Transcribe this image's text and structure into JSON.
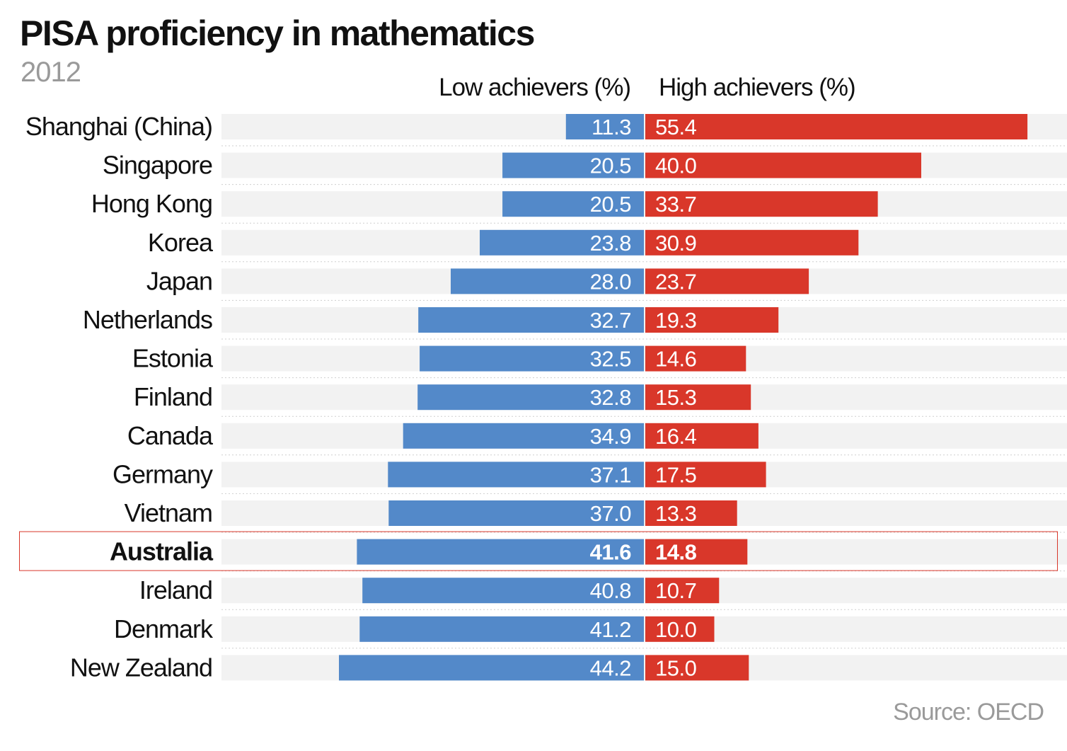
{
  "chart_data": {
    "type": "bar",
    "title": "PISA proficiency in mathematics",
    "subtitle": "2012",
    "source": "Source: OECD",
    "categories": [
      "Shanghai (China)",
      "Singapore",
      "Hong Kong",
      "Korea",
      "Japan",
      "Netherlands",
      "Estonia",
      "Finland",
      "Canada",
      "Germany",
      "Vietnam",
      "Australia",
      "Ireland",
      "Denmark",
      "New Zealand"
    ],
    "series": [
      {
        "name": "Low achievers (%)",
        "color": "#5389c9",
        "values": [
          11.3,
          20.5,
          20.5,
          23.8,
          28.0,
          32.7,
          32.5,
          32.8,
          34.9,
          37.1,
          37.0,
          41.6,
          40.8,
          41.2,
          44.2
        ]
      },
      {
        "name": "High achievers (%)",
        "color": "#d9372a",
        "values": [
          55.4,
          40.0,
          33.7,
          30.9,
          23.7,
          19.3,
          14.6,
          15.3,
          16.4,
          17.5,
          13.3,
          14.8,
          10.7,
          10.0,
          15.0
        ]
      }
    ],
    "highlight": "Australia",
    "highlight_color": "#d9372a",
    "track_color": "#f2f2f2",
    "grid": false,
    "legend": "top"
  }
}
